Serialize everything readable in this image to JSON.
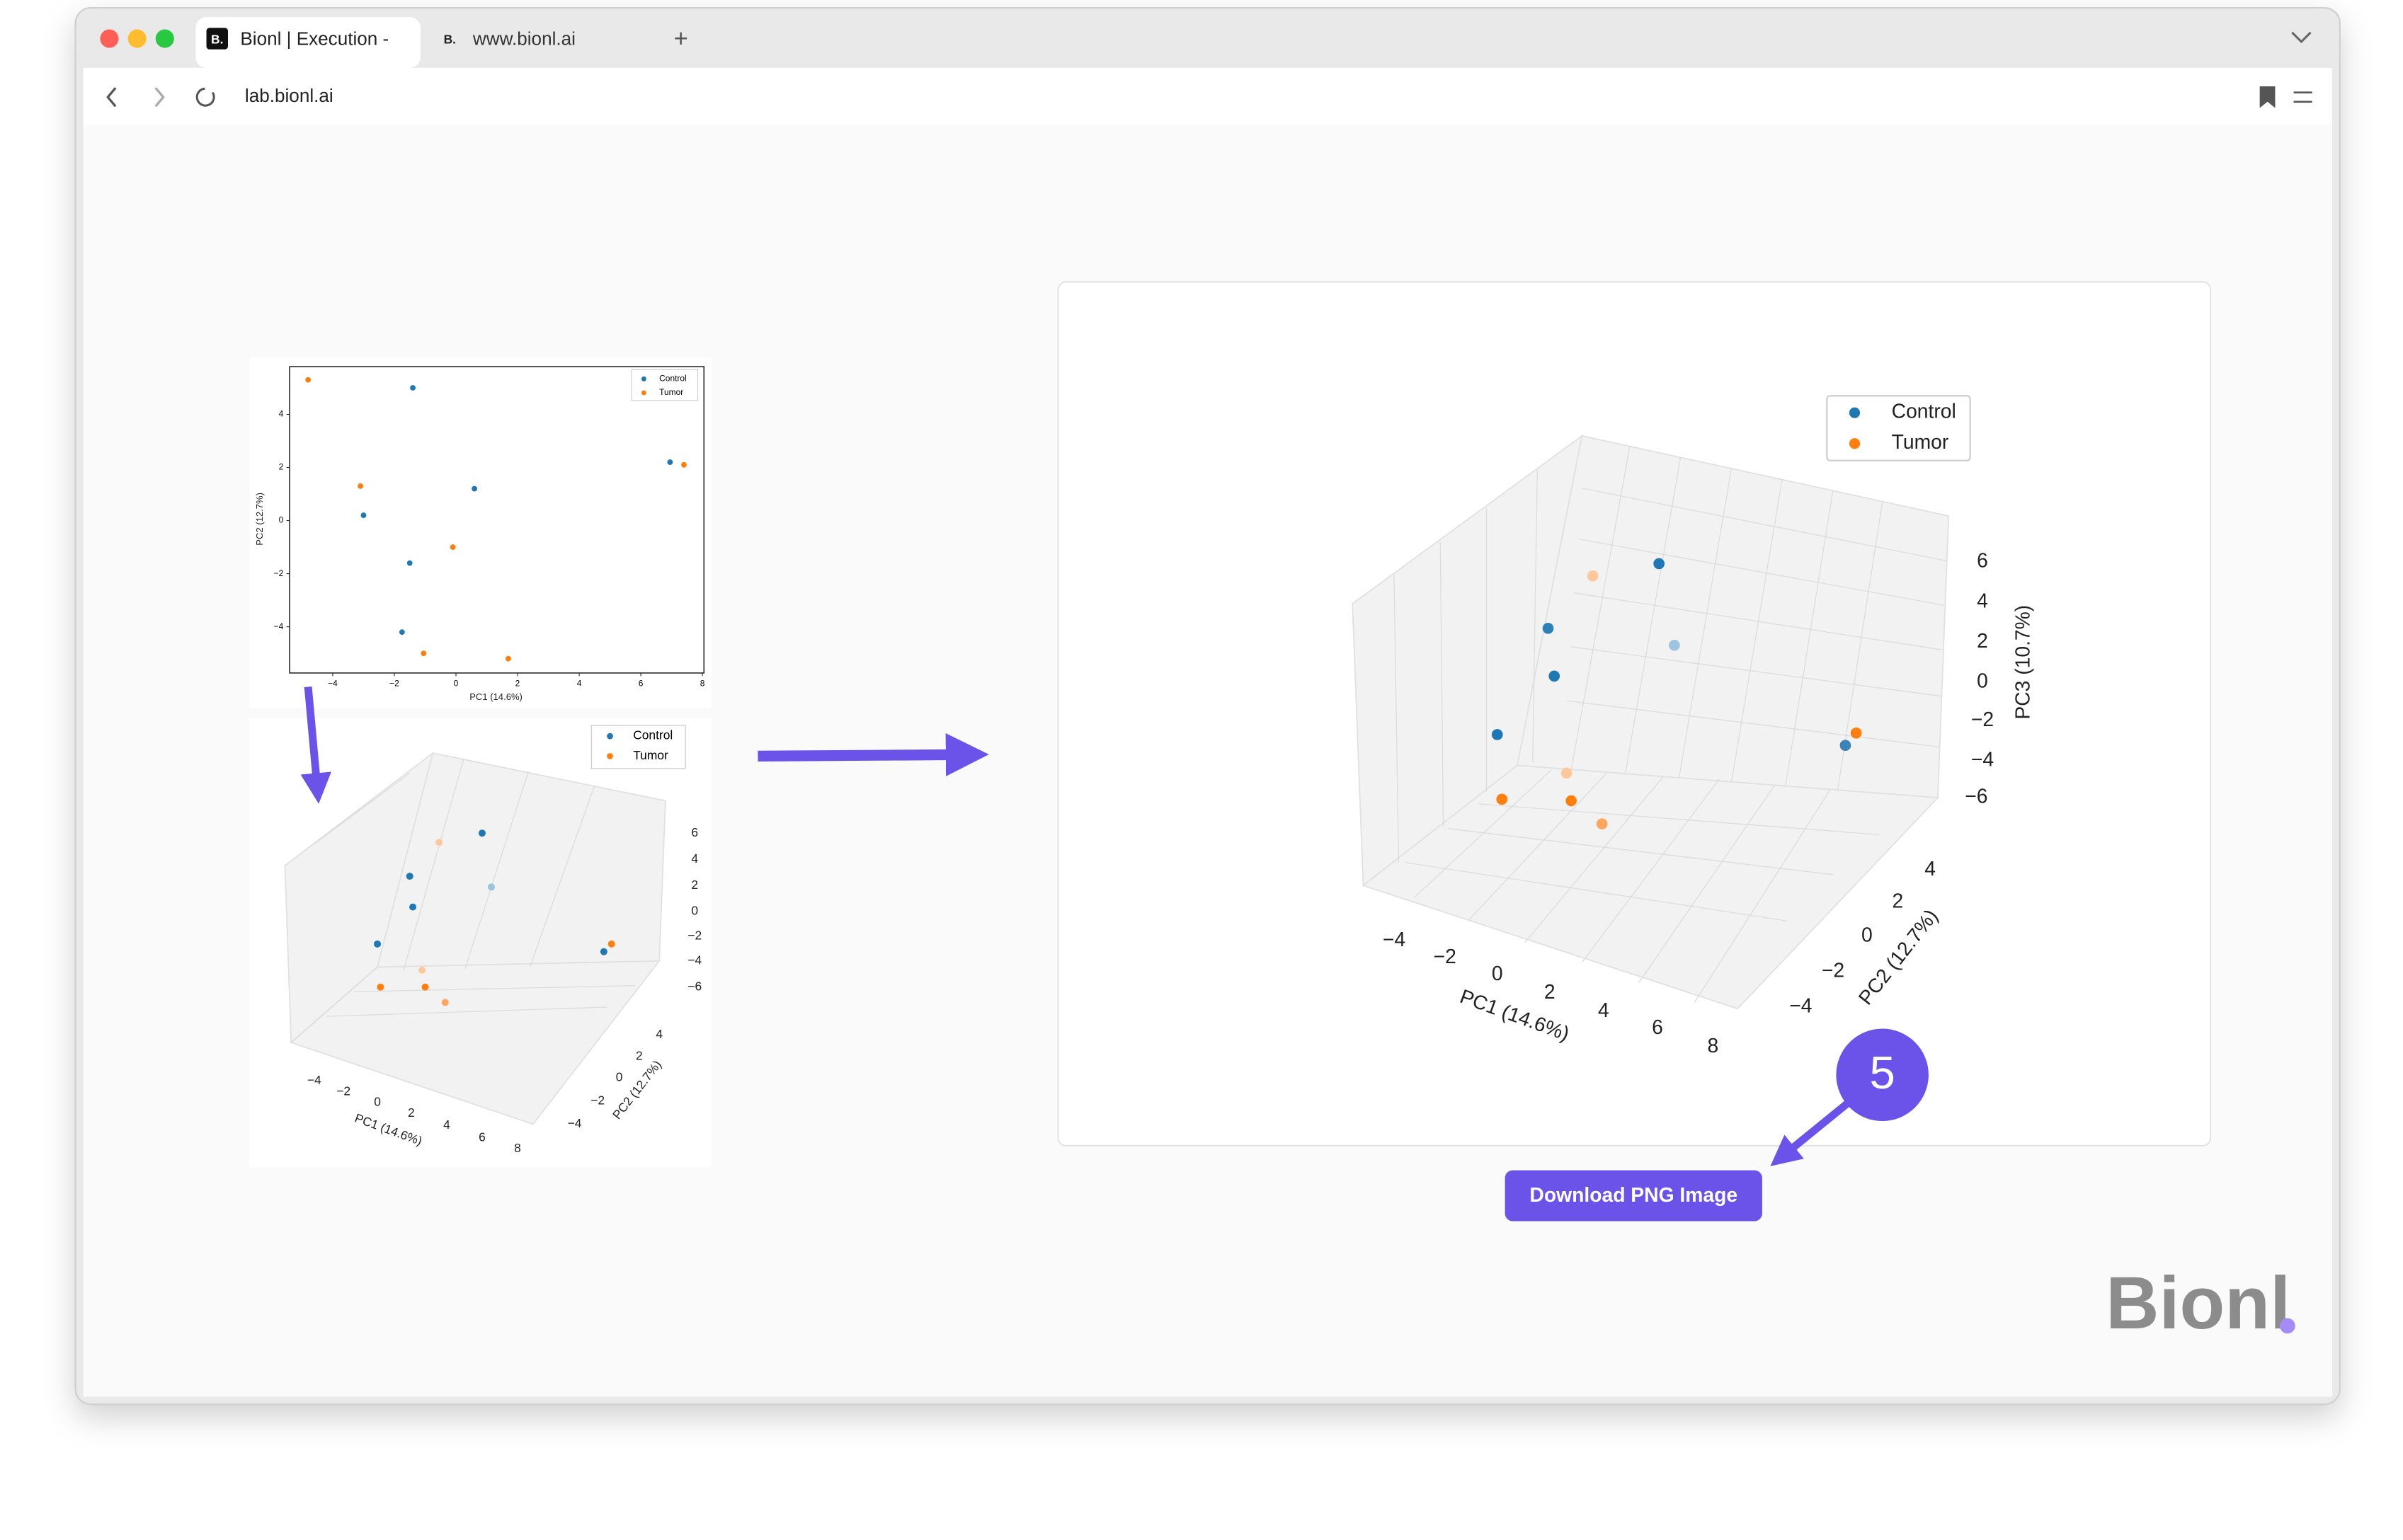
{
  "browser": {
    "tabs": [
      {
        "icon": "B.",
        "title": "Bionl | Execution -"
      },
      {
        "icon": "B.",
        "title": "www.bionl.ai"
      }
    ],
    "new_tab": "+",
    "url": "lab.bionl.ai"
  },
  "plot2d": {
    "xlabel": "PC1 (14.6%)",
    "ylabel": "PC2 (12.7%)",
    "xlim": [
      -5.4,
      8.05
    ],
    "ylim": [
      -5.74,
      5.8
    ],
    "xticks": [
      -4,
      -2,
      0,
      2,
      4,
      6,
      8
    ],
    "xtick_labels": [
      "−4",
      "−2",
      "0",
      "2",
      "4",
      "6",
      "8"
    ],
    "yticks": [
      -4,
      -2,
      0,
      2,
      4
    ],
    "ytick_labels": [
      "−4",
      "−2",
      "0",
      "2",
      "4"
    ],
    "series": [
      {
        "name": "Control",
        "color": "#1f77b4",
        "x": [
          -1.4,
          -3.0,
          -1.5,
          -1.75,
          0.6,
          6.95
        ],
        "y": [
          5.0,
          0.2,
          -1.6,
          -4.2,
          1.2,
          2.2
        ]
      },
      {
        "name": "Tumor",
        "color": "#ff7f0e",
        "x": [
          -4.8,
          -3.1,
          -0.1,
          -1.05,
          1.7,
          7.4
        ],
        "y": [
          5.3,
          1.3,
          -1.0,
          -5.0,
          -5.2,
          2.1
        ]
      }
    ]
  },
  "plot3d_small": {
    "legend": [
      "Control",
      "Tumor"
    ],
    "xlabel": "PC1 (14.6%)",
    "ylabel": "PC2 (12.7%)",
    "xtick_labels": [
      "−4",
      "−2",
      "0",
      "2",
      "4",
      "6",
      "8"
    ],
    "ytick_labels": [
      "−4",
      "−2",
      "0",
      "2",
      "4"
    ],
    "ztick_labels": [
      "6",
      "4",
      "2",
      "0",
      "−2",
      "−4",
      "−6"
    ]
  },
  "plot3d_large": {
    "legend": [
      "Control",
      "Tumor"
    ],
    "xlabel": "PC1 (14.6%)",
    "ylabel": "PC2 (12.7%)",
    "zlabel": "PC3 (10.7%)",
    "xtick_labels": [
      "−4",
      "−2",
      "0",
      "2",
      "4",
      "6",
      "8"
    ],
    "ytick_labels": [
      "−4",
      "−2",
      "0",
      "2",
      "4"
    ],
    "ztick_labels": [
      "6",
      "4",
      "2",
      "0",
      "−2",
      "−4",
      "−6"
    ]
  },
  "step": "5",
  "button": "Download PNG Image",
  "logo": "Bionl"
}
